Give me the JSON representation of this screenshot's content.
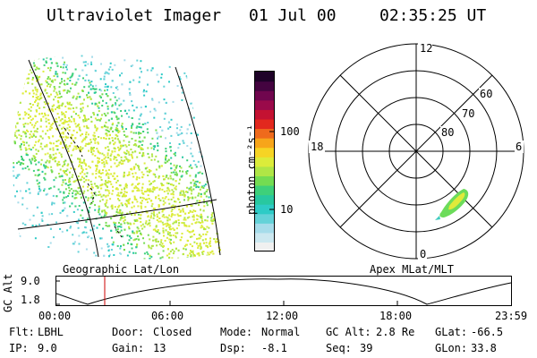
{
  "header": {
    "title": "Ultraviolet Imager",
    "date": "01 Jul 00",
    "time": "02:35:25 UT"
  },
  "colorbar": {
    "unit_label": "photon cm⁻²s⁻¹",
    "ticks": [
      {
        "value": "100"
      },
      {
        "value": "10"
      }
    ],
    "colors": [
      "#f0f0f0",
      "#cce8f0",
      "#a6dcea",
      "#64d2d8",
      "#2ecbc6",
      "#28c8a0",
      "#3ed07a",
      "#74dc52",
      "#b0e646",
      "#dcec3a",
      "#f6d424",
      "#f7a51a",
      "#ef6a1c",
      "#e2281e",
      "#c41232",
      "#9a0a4a",
      "#70064e",
      "#440440",
      "#1e0228"
    ]
  },
  "left_panel": {
    "caption": "Geographic Lat/Lon"
  },
  "right_panel": {
    "caption": "Apex MLat/MLT",
    "mlt_labels": {
      "top": "12",
      "bottom": "0",
      "left": "18",
      "right": "6"
    },
    "lat_labels": [
      "60",
      "70",
      "80"
    ]
  },
  "gc_alt_plot": {
    "ylabel": "GC Alt",
    "y_ticks": [
      "9.0",
      "1.8"
    ],
    "x_ticks": [
      "00:00",
      "06:00",
      "12:00",
      "18:00",
      "23:59"
    ],
    "current_time_marker": "02:35",
    "marker_color": "#cc0000"
  },
  "status": {
    "flt_label": "Flt:",
    "flt_value": "LBHL",
    "ip_label": "IP:",
    "ip_value": "9.0",
    "door_label": "Door:",
    "door_value": "Closed",
    "gain_label": "Gain:",
    "gain_value": "13",
    "mode_label": "Mode:",
    "mode_value": "Normal",
    "dsp_label": "Dsp:",
    "dsp_value": "-8.1",
    "gcalt_label": "GC Alt:",
    "gcalt_value": "2.8 Re",
    "seq_label": "Seq:",
    "seq_value": "39",
    "glat_label": "GLat:",
    "glat_value": "-66.5",
    "glon_label": "GLon:",
    "glon_value": "33.8"
  }
}
